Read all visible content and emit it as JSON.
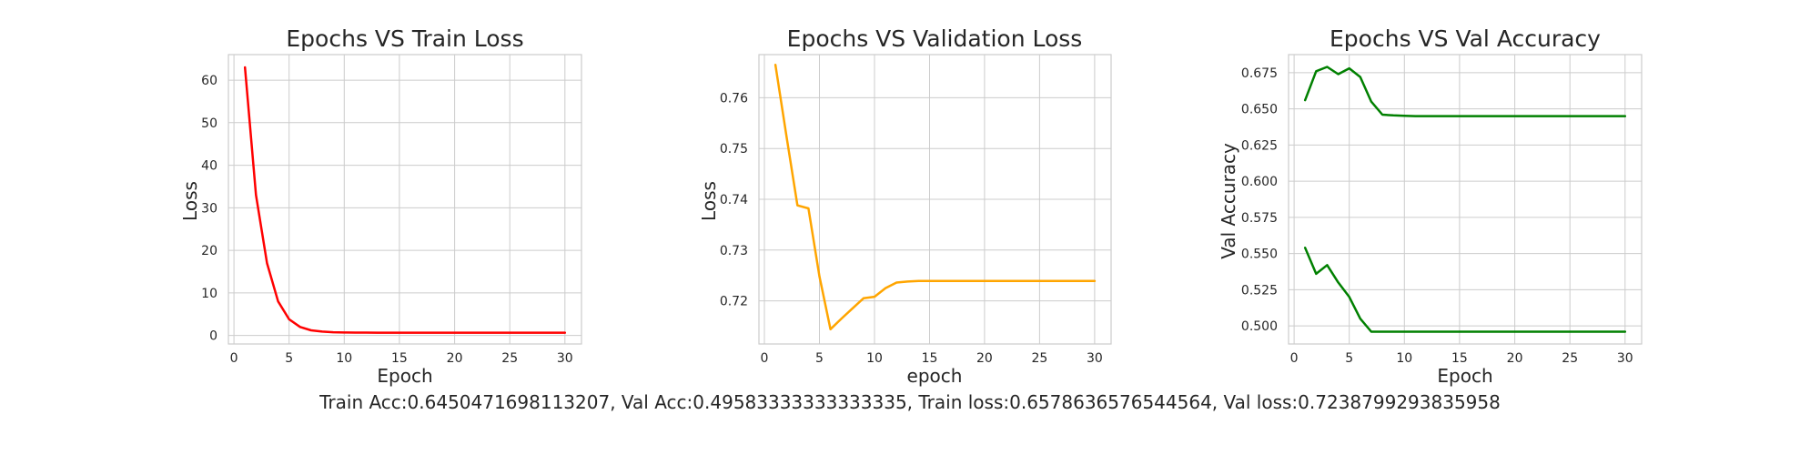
{
  "summary": "Train Acc:0.6450471698113207, Val Acc:0.49583333333333335, Train loss:0.6578636576544564, Val loss:0.7238799293835958",
  "chart_data": [
    {
      "type": "line",
      "title": "Epochs VS Train Loss",
      "xlabel": "Epoch",
      "ylabel": "Loss",
      "xlim": [
        -0.5,
        31.5
      ],
      "ylim": [
        -2,
        66
      ],
      "xticks": [
        0,
        5,
        10,
        15,
        20,
        25,
        30
      ],
      "yticks": [
        0,
        10,
        20,
        30,
        40,
        50,
        60
      ],
      "grid": true,
      "series": [
        {
          "color": "#ff0000",
          "x": [
            1,
            2,
            3,
            4,
            5,
            6,
            7,
            8,
            9,
            10,
            11,
            12,
            13,
            14,
            15,
            16,
            17,
            18,
            19,
            20,
            21,
            22,
            23,
            24,
            25,
            26,
            27,
            28,
            29,
            30
          ],
          "y": [
            63,
            33,
            17,
            8,
            3.8,
            2,
            1.2,
            0.9,
            0.75,
            0.7,
            0.68,
            0.67,
            0.66,
            0.66,
            0.66,
            0.66,
            0.66,
            0.66,
            0.66,
            0.66,
            0.66,
            0.66,
            0.66,
            0.66,
            0.66,
            0.66,
            0.66,
            0.66,
            0.66,
            0.66
          ]
        }
      ]
    },
    {
      "type": "line",
      "title": "Epochs VS Validation Loss",
      "xlabel": "epoch",
      "ylabel": "Loss",
      "xlim": [
        -0.5,
        31.5
      ],
      "ylim": [
        0.7115,
        0.7685
      ],
      "xticks": [
        0,
        5,
        10,
        15,
        20,
        25,
        30
      ],
      "yticks": [
        0.72,
        0.73,
        0.74,
        0.75,
        0.76
      ],
      "grid": true,
      "series": [
        {
          "color": "#ffa500",
          "x": [
            1,
            2,
            3,
            4,
            5,
            6,
            7,
            8,
            9,
            10,
            11,
            12,
            13,
            14,
            15,
            16,
            17,
            18,
            19,
            20,
            21,
            22,
            23,
            24,
            25,
            26,
            27,
            28,
            29,
            30
          ],
          "y": [
            0.7665,
            0.7525,
            0.7388,
            0.7382,
            0.7248,
            0.7144,
            0.7165,
            0.7185,
            0.7205,
            0.7208,
            0.7225,
            0.7236,
            0.7238,
            0.7239,
            0.7239,
            0.7239,
            0.7239,
            0.7239,
            0.7239,
            0.7239,
            0.7239,
            0.7239,
            0.7239,
            0.7239,
            0.7239,
            0.7239,
            0.7239,
            0.7239,
            0.7239,
            0.7239
          ]
        }
      ]
    },
    {
      "type": "line",
      "title": "Epochs VS Val Accuracy",
      "xlabel": "Epoch",
      "ylabel": "Val Accuracy",
      "xlim": [
        -0.5,
        31.5
      ],
      "ylim": [
        0.4875,
        0.6875
      ],
      "xticks": [
        0,
        5,
        10,
        15,
        20,
        25,
        30
      ],
      "yticks": [
        0.5,
        0.525,
        0.55,
        0.575,
        0.6,
        0.625,
        0.65,
        0.675
      ],
      "ytick_labels": [
        "0.500",
        "0.525",
        "0.550",
        "0.575",
        "0.600",
        "0.625",
        "0.650",
        "0.675"
      ],
      "grid": true,
      "series": [
        {
          "color": "#008000",
          "x": [
            1,
            2,
            3,
            4,
            5,
            6,
            7,
            8,
            9,
            10,
            11,
            12,
            13,
            14,
            15,
            16,
            17,
            18,
            19,
            20,
            21,
            22,
            23,
            24,
            25,
            26,
            27,
            28,
            29,
            30
          ],
          "y": [
            0.656,
            0.676,
            0.679,
            0.674,
            0.678,
            0.672,
            0.655,
            0.646,
            0.6455,
            0.6452,
            0.645,
            0.645,
            0.645,
            0.645,
            0.645,
            0.645,
            0.645,
            0.645,
            0.645,
            0.645,
            0.645,
            0.645,
            0.645,
            0.645,
            0.645,
            0.645,
            0.645,
            0.645,
            0.645,
            0.645
          ]
        },
        {
          "color": "#008000",
          "x": [
            1,
            2,
            3,
            4,
            5,
            6,
            7,
            8,
            9,
            10,
            11,
            12,
            13,
            14,
            15,
            16,
            17,
            18,
            19,
            20,
            21,
            22,
            23,
            24,
            25,
            26,
            27,
            28,
            29,
            30
          ],
          "y": [
            0.554,
            0.536,
            0.542,
            0.53,
            0.52,
            0.505,
            0.496,
            0.496,
            0.496,
            0.496,
            0.496,
            0.496,
            0.496,
            0.496,
            0.496,
            0.496,
            0.496,
            0.496,
            0.496,
            0.496,
            0.496,
            0.496,
            0.496,
            0.496,
            0.496,
            0.496,
            0.496,
            0.496,
            0.496,
            0.496
          ]
        }
      ]
    }
  ]
}
